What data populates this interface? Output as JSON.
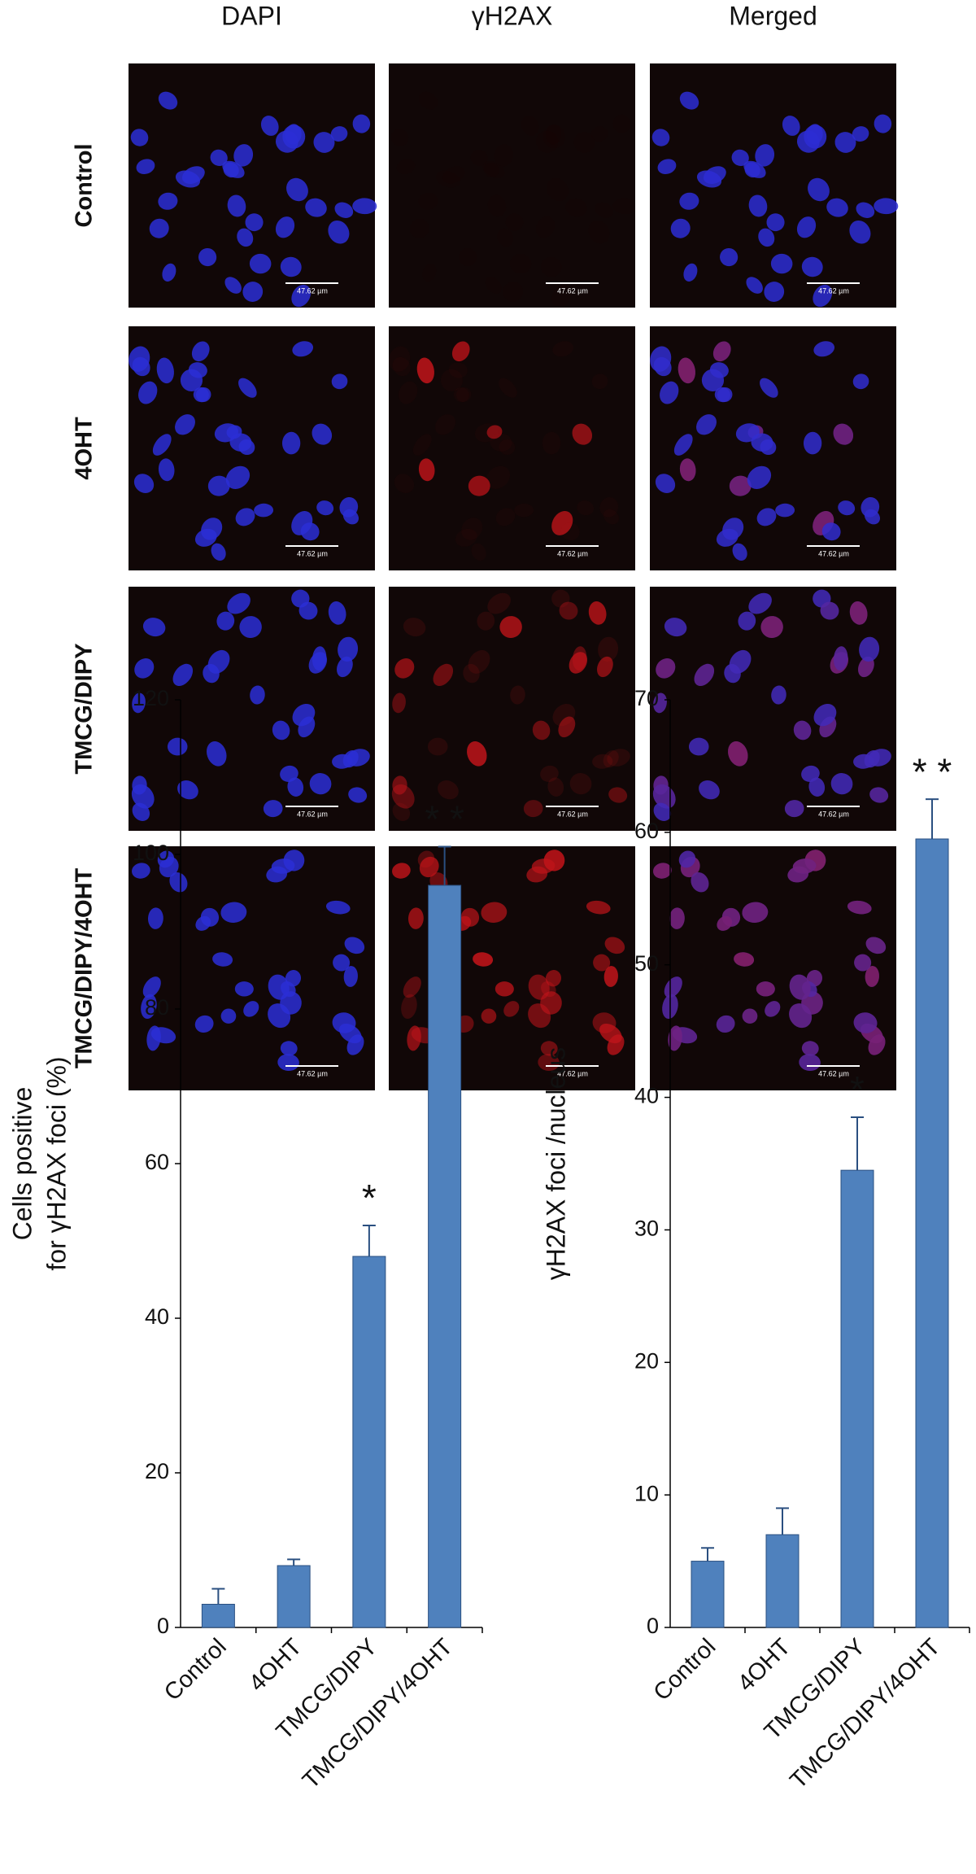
{
  "micrographs": {
    "columns": [
      "DAPI",
      "γH2AX",
      "Merged"
    ],
    "rows": [
      "Control",
      "4OHT",
      "TMCG/DIPY",
      "TMCG/DIPY/4OHT"
    ],
    "scale_bar_label": "47.62 µm"
  },
  "chart_data": [
    {
      "type": "bar",
      "ylabel": [
        "Cells positive",
        "for γH2AX foci (%)"
      ],
      "categories": [
        "Control",
        "4OHT",
        "TMCG/DIPY",
        "TMCG/DIPY/4OHT"
      ],
      "values": [
        3,
        8,
        48,
        96
      ],
      "errors": [
        2,
        0.8,
        4,
        5
      ],
      "color": "#4f81bd",
      "annotations": [
        null,
        null,
        "*",
        "* *"
      ],
      "ylim": [
        0,
        120
      ],
      "yticks": [
        0,
        20,
        40,
        60,
        80,
        100,
        120
      ]
    },
    {
      "type": "bar",
      "ylabel": "γH2AX foci /nucleus",
      "categories": [
        "Control",
        "4OHT",
        "TMCG/DIPY",
        "TMCG/DIPY/4OHT"
      ],
      "values": [
        5,
        7,
        34.5,
        59.5
      ],
      "errors": [
        1,
        2,
        4,
        3
      ],
      "color": "#4f81bd",
      "annotations": [
        null,
        null,
        "*",
        "* *"
      ],
      "ylim": [
        0,
        70
      ],
      "yticks": [
        0,
        10,
        20,
        30,
        40,
        50,
        60,
        70
      ]
    }
  ]
}
